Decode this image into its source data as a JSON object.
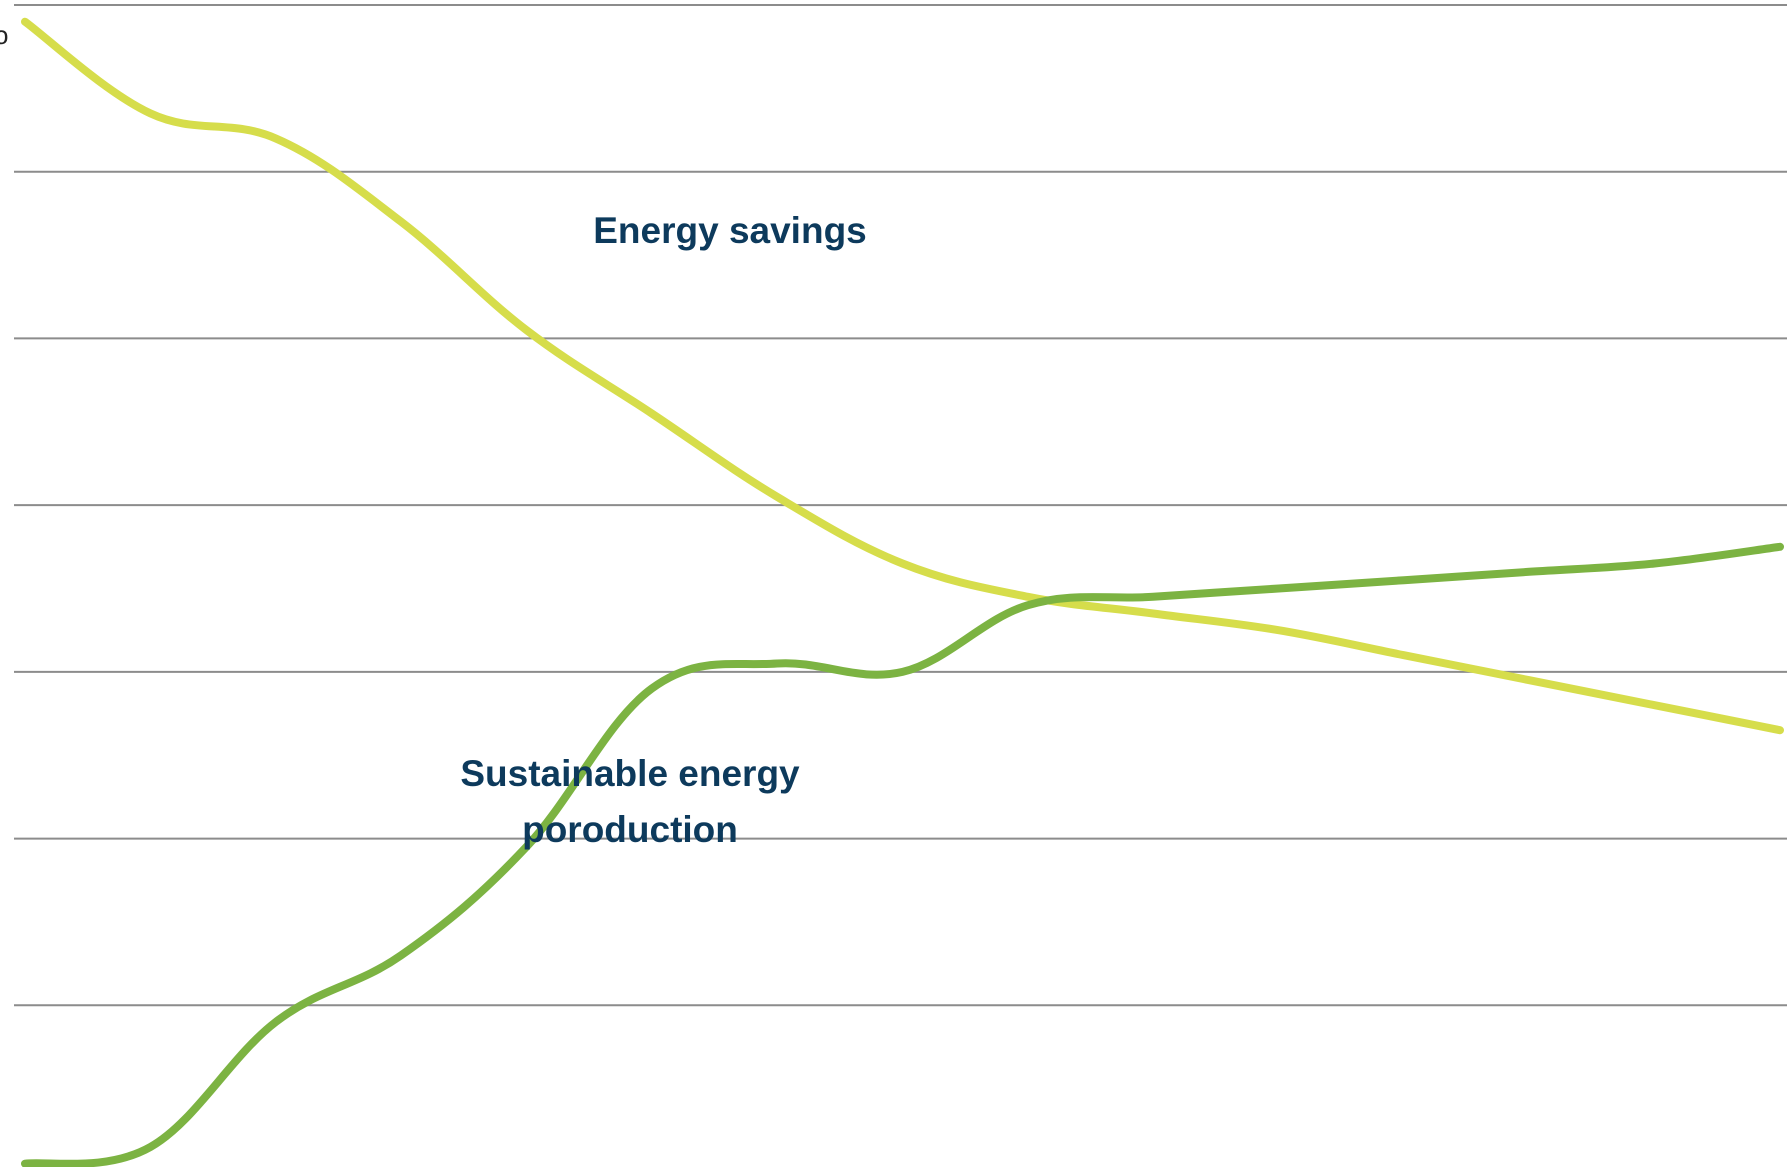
{
  "chart_data": {
    "type": "line",
    "title": "",
    "xlabel": "",
    "ylabel": "",
    "x": [
      0,
      1,
      2,
      3,
      4,
      5,
      6,
      7,
      8,
      9,
      10,
      11,
      12,
      13,
      14
    ],
    "xlim": [
      0,
      14
    ],
    "ylim": [
      0,
      7
    ],
    "grid": true,
    "gridlines": [
      0,
      1,
      2,
      3,
      4,
      5,
      6,
      7
    ],
    "series": [
      {
        "key": "savings",
        "values": [
          6.9,
          6.35,
          6.2,
          5.7,
          5.05,
          4.55,
          4.05,
          3.65,
          3.45,
          3.35,
          3.25,
          3.1,
          2.95,
          2.8,
          2.65
        ],
        "color": "#d6dd4b"
      },
      {
        "key": "production",
        "values": [
          0.05,
          0.15,
          0.9,
          1.3,
          1.95,
          2.9,
          3.05,
          3.0,
          3.4,
          3.45,
          3.5,
          3.55,
          3.6,
          3.65,
          3.75
        ],
        "color": "#7cb342"
      }
    ],
    "annotations": [
      {
        "key": "savings_label",
        "lines": [
          "Energy savings"
        ]
      },
      {
        "key": "production_label",
        "lines": [
          "Sustainable energy",
          "poroduction"
        ]
      }
    ],
    "edge_glyph": "o"
  },
  "colors": {
    "gridline": "#8c8c8c",
    "annotation_text": "#0d3a5c",
    "savings_line": "#d6dd4b",
    "production_line": "#7cb342"
  }
}
